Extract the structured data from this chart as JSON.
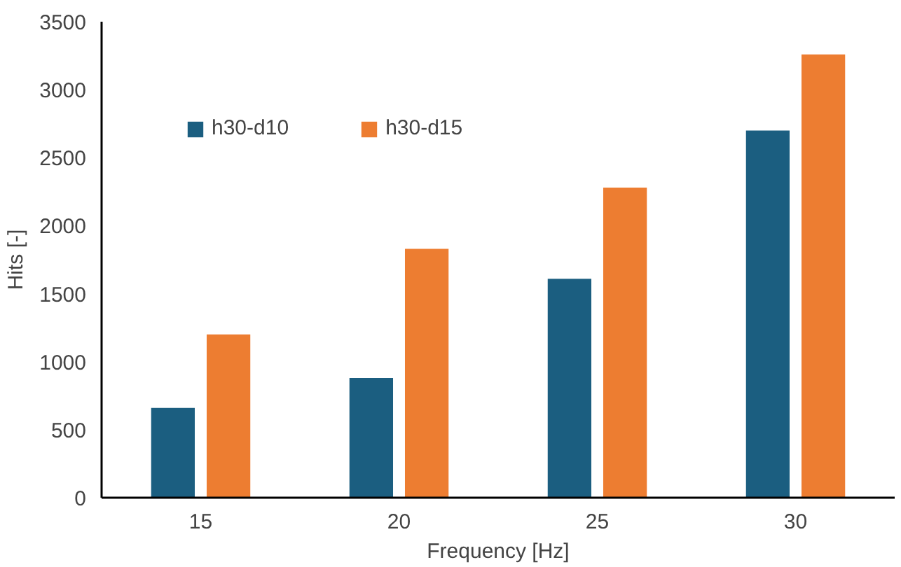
{
  "chart_data": {
    "type": "bar",
    "xlabel": "Frequency [Hz]",
    "ylabel": "Hits [-]",
    "categories": [
      "15",
      "20",
      "25",
      "30"
    ],
    "series": [
      {
        "name": "h30-d10",
        "color": "#1b5e80",
        "values": [
          660,
          880,
          1610,
          2700
        ]
      },
      {
        "name": "h30-d15",
        "color": "#ed7d31",
        "values": [
          1200,
          1830,
          2280,
          3260
        ]
      }
    ],
    "ylim": [
      0,
      3500
    ],
    "yticks": [
      0,
      500,
      1000,
      1500,
      2000,
      2500,
      3000,
      3500
    ],
    "grid": false,
    "legend": "top left"
  }
}
